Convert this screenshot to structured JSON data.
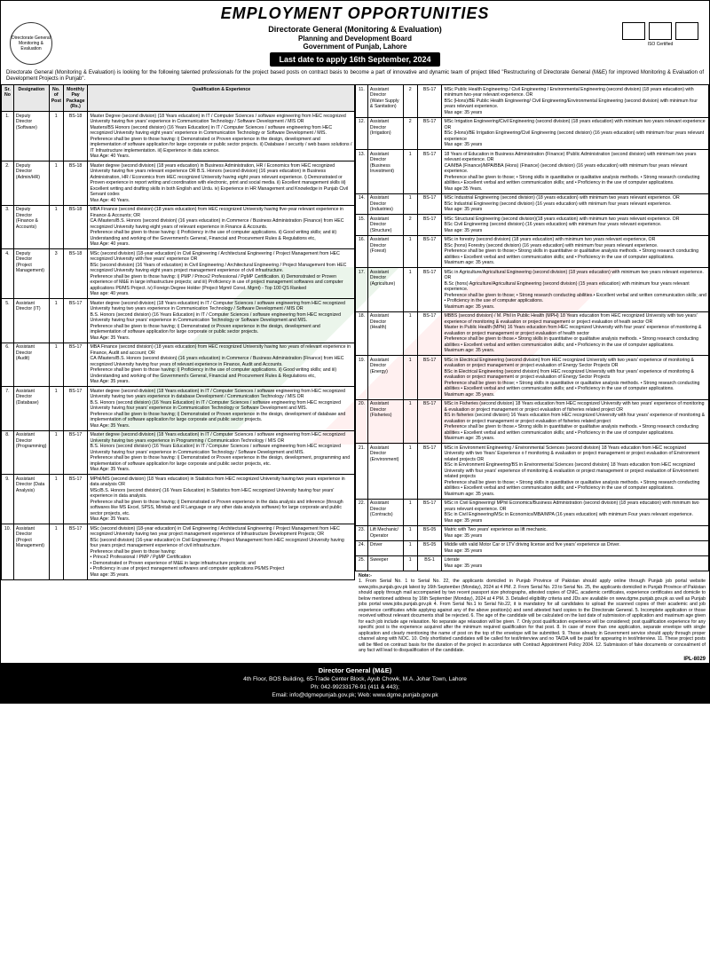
{
  "header": {
    "title": "EMPLOYMENT OPPORTUNITIES",
    "org1": "Directorate General (Monitoring & Evaluation)",
    "org2": "Planning and Development Board",
    "org3": "Government of Punjab, Lahore",
    "deadline": "Last date to apply 16th September, 2024",
    "iso": "ISO Certified",
    "logo_text": "Directorate General Monitoring & Evaluation"
  },
  "intro": "Directorate General (Monitoring & Evaluation) is looking for the following talented professionals for the project based posts on contract basis to become a part of innovative and dynamic team of project titled \"Restructuring of Directorate General (M&E) for improved Monitoring & Evaluation of Development Projects in Punjab\".",
  "th": {
    "sr": "Sr. No",
    "desig": "Designation",
    "posts": "No. of Post",
    "pay": "Monthly Pay Package (Rs.)",
    "qual": "Qualification & Experience"
  },
  "left": [
    {
      "no": "1.",
      "d": "Deputy Director (Software)",
      "p": "1",
      "s": "BS-18",
      "q": "Master Degree (second division) (18 Years education) in IT / Computer Sciences / software engineering from HEC recognized University having five years' experience in Communication Technology / Software Development / MIS OR\nMasters/BS Honors (second division) (16 Years Education) in IT / Computer Sciences / software engineering from HEC recognized University having eight years' experience in Communication Technology or Software Development / MIS.\nPreference shall be given to those having: i) Demonstrated or Proven experience in the design, development and implementation of software application for large corporate or public sector projects. ii) Database / security / web bases solutions / IT Infrastructure implementation. iii) Experience in data science.\nMax Age: 40 Years."
    },
    {
      "no": "2.",
      "d": "Deputy Director (Admin/HR)",
      "p": "1",
      "s": "BS-18",
      "q": "Master degree (second division) (18 years education) in Business Administration, HR / Economics from HEC recognized University having five years relevant experience OR B.S. Honors (second division) (16 years education) in Business Administration, HR / Economics from HEC recognized University having eight years relevant experience. i) Demonstrated or Proven experience in report writing and coordination with electronic, print and social media. ii) Excellent management skills iii) Excellent writing and drafting skills in both English and Urdu. iv) Experience in HR Management and Knowledge in Punjab Civil Servant codes\nMax Age: 40 Years."
    },
    {
      "no": "3.",
      "d": "Deputy Director (Finance & Accounts)",
      "p": "1",
      "s": "BS-18",
      "q": "MBA Finance (second division) (18 years education) from HEC recognized University having five-year relevant experience in Finance & Accounts; OR\nCA /Masters/B.S. Honors (second division) (16 years education) in Commerce / Business Administration (Finance) from HEC recognized University having eight years of relevant experience in Finance & Accounts.\nPreference shall be given to those having: i) Proficiency in the use of computer applications. ii) Good writing skills; and iii) Understanding and working of the Government's General, Financial and Procurement Rules & Regulations etc,\nMax Age: 40 years."
    },
    {
      "no": "4.",
      "d": "Deputy Director (Project Management)",
      "p": "3",
      "s": "BS-18",
      "q": "MSc (second division) (18-year education) in Civil Engineering / Architectural Engineering / Project Management from HEC recognized University with five years' experience OR\nBSc (second division) (16 Years of education) in Civil Engineering / Architectural Engineering / Project Management from HEC recognized University having eight years project management experience of civil infrastructure.\nPreference shall be given to those having: i) PMP / Prince2 Professional / PgMP Certification. ii) Demonstrated or Proven experience of M&E in large infrastructure projects; and iii) Proficiency in use of project management softwares and computer applications P6/MS Project. iv) Foreign Degree Holder (Project Mgmt/ Const. Mgmt) - Top 100 QS Ranked\nMax age: 40 years."
    },
    {
      "no": "5.",
      "d": "Assistant Director (IT)",
      "p": "1",
      "s": "BS-17",
      "q": "Master degree (second division) (18 Years education) in IT / Computer Sciences / software engineering from HEC recognized University having two years experience in Communication Technology / Software Development / MIS OR\nB.S. Honors (second division) (16 Years Education) in IT / Computer Sciences / software engineering from HEC recognized University having four years' experience in Communication Technology or Software Development and MIS.\nPreference shall be given to those having; i) Demonstrated or Proven experience in the design, development and implementation of software application for large corporate or public sector projects.\nMax Age: 35 Years."
    },
    {
      "no": "6.",
      "d": "Assistant Director (Audit)",
      "p": "1",
      "s": "BS-17",
      "q": "MBA Finance (second division) (18 years education) from HEC recognized University having two years of relevant experience in Finance, Audit and account; OR\nCA /Masters/B.S. Honors (second division) (16 years education) in Commerce / Business Administration (Finance) from HEC recognized University having four years of relevant experience in Finance, Audit and Accounts.\nPreference shall be given to those having: i) Proficiency in the use of computer applications. ii) Good writing skills; and iii) Understanding and working of the Government's General, Financial and Procurement Rules & Regulations etc,\nMax Age: 35 years."
    },
    {
      "no": "7.",
      "d": "Assistant Director (Database)",
      "p": "1",
      "s": "BS-17",
      "q": "Master degree (second division) (18 Years education) in IT / Computer Sciences / software engineering from HEC recognized University having two years experience in database Development / Communication Technology / MIS OR\nB.S. Honors (second division) (16 Years Education) in IT / Computer Sciences / software engineering from HEC recognized University having four years' experience in Communication Technology or Software Development and MIS.\nPreference shall be given to those having; i) Demonstrated or Proven experience in the design, development of database and implementation of software application for large corporate and public sector projects.\nMax Age: 35 Years."
    },
    {
      "no": "8.",
      "d": "Assistant Director (Programming)",
      "p": "1",
      "s": "BS-17",
      "q": "Master degree (second division) (18 Years education) in IT / Computer Sciences / software engineering from HEC recognized University having two years experience in Programming / Communication Technology / MIS OR\nB.S. Honors (second division) (16 Years Education) in IT / Computer Sciences / software engineering from HEC recognized University having four years' experience in Communication Technology / Software Development and MIS.\nPreference shall be given to those having: i) Demonstrated or Proven experience in the design, development, programming and implementation of software application for large corporate and public sector projects, etc.\nMax Age: 35 Years."
    },
    {
      "no": "9.",
      "d": "Assistant Director (Data Analysis)",
      "p": "1",
      "s": "BS-17",
      "q": "MPhil/MS (second division) (18 Years education) in Statistics from HEC recognized University having two years experience in data analysis OR\nMSc/B.S. Honors (second division) (16 Years Education) in Statistics from HEC recognized University having four years' experience in data analysis.\nPreference shall be given to those having; i) Demonstrated or Proven experience in the data analysis and inference (through softwares like MS Excel, SPSS, Minitab and R Language or any other data analysis software) for large corporate and public sector projects, etc.\nMax Age: 35 Years."
    },
    {
      "no": "10.",
      "d": "Assistant Director (Project Management)",
      "p": "1",
      "s": "BS-17",
      "q": "MSc (second division) (18-year education) in Civil Engineering / Architectural Engineering / Project Management from HEC recognized University having two year project management experience of Infrastructure Development Projects; OR\nBSc (second division) (16-year education) in Civil Engineering / Project Management from HEC recognized University having four years project management experience of civil infrastructure.\nPreference shall be given to those having:\n• Prince2 Professional / PMP / PgMP Certification\n• Demonstrated or Proven experience of M&E in large infrastructure projects; and\n• Proficiency in use of project management softwares and computer applications P6/MS Project\nMax age: 35 years."
    }
  ],
  "right": [
    {
      "no": "11.",
      "d": "Assistant Director (Water Supply & Sanitation)",
      "p": "2",
      "s": "BS-17",
      "q": "MSc Public Health Engineering / Civil Engineering / Environmental Engineering (second division) (18 years education) with minimum two-year relevant experience. OR\nBSc (Hons)/BE Public Health Engineering/ Civil Engineering/Environmental Engineering (second division) with minimum four years relevant experience.\nMax age: 35 years"
    },
    {
      "no": "12.",
      "d": "Assistant Director (Irrigation)",
      "p": "2",
      "s": "BS-17",
      "q": "MSc Irrigation Engineering/Civil Engineering (second division) (18 years education) with minimum two years relevant experience OR\nBSc (Hons)/BE Irrigation Engineering/Civil Engineering (second division) (16 years education) with minimum four years relevant experience\nMax age: 35 years"
    },
    {
      "no": "13.",
      "d": "Assistant Director (Business Investment)",
      "p": "1",
      "s": "BS-17",
      "q": "18 Years of Education in Business Administration (Finance) /Public Administration (second division) with minimum two years relevant experience. OR\nCA/MBA (Finance)/MPA/BBA (Hons) (Finance) (second division) (16 years education) with minimum four years relevant experience.\nPreference shall be given to those; • Strong skills in quantitative or qualitative analysis methods. • Strong research conducting abilities.• Excellent verbal and written communication skills; and • Proficiency in the use of computer applications.\nMax age:35 Years."
    },
    {
      "no": "14.",
      "d": "Assistant Director (Industries)",
      "p": "1",
      "s": "BS-17",
      "q": "MSc Industrial Engineering (second division) (18 years education) with minimum two years relevant experience. OR\nBSc Industrial Engineering (second division) (16 years education) with minimum four years relevant experience.\nMax age: 35 years"
    },
    {
      "no": "15.",
      "d": "Assistant Director (Structure)",
      "p": "2",
      "s": "BS-17",
      "q": "MSc Structural Engineering (second division)(18 years education) with minimum two years relevant experience. OR\nBSc Civil Engineering (second division) (16 years education) with minimum four years relevant experience.\nMax age: 35 years"
    },
    {
      "no": "16.",
      "d": "Assistant Director (Forest)",
      "p": "1",
      "s": "BS-17",
      "q": "MSc in forestry (second division) (18 years education) with minimum two years relevant experience, OR\nBSc (hons) Forestry (second division) (16 years education) with minimum four years relevant experience.\nPreference shall be given to those;• Strong skills in quantitative or qualitative analysis methods. • Strong research conducting abilities • Excellent verbal and written communication skills; and • Proficiency in the use of computer applications.\nMaximum age: 35 years."
    },
    {
      "no": "17.",
      "d": "Assistant Director (Agriculture)",
      "p": "1",
      "s": "BS-17",
      "q": "MSc in Agriculture/Agricultural Engineering (second division) (18 years education) with minimum two years relevant experience. OR\nB.Sc (hons) Agriculture/Agricultural Engineering (second division) (15 years education) with minimum four years relevant experience.\nPreference shall be given to those; • Strong research conducting abilities.• Excellent verbal and written communication skills; and • Proficiency in the use of computer applications.\nMaximum age: 35 years."
    },
    {
      "no": "18.",
      "d": "Assistant Director (Health)",
      "p": "1",
      "s": "BS-17",
      "q": "MBBS (second division) / M. Phil in Public Health (MPH) 18 Years education from HEC recognized University with two years' experience of monitoring & evaluation or project management or project evaluation of heath sector OR\nMaster in Public Health (MPH) 16 Years education from HEC recognized University with four years' experience of monitoring & evaluation or project management or project evaluation of health sector\nPreference shall be given to those.• Strong skills in quantitative or qualitative analysis methods. • Strong research conducting abilities • Excellent verbal and written communication skills; and • Proficiency in the use of computer applications.\nMaximum age: 35 years."
    },
    {
      "no": "19.",
      "d": "Assistant Director (Energy)",
      "p": "1",
      "s": "BS-17",
      "q": "MSc in Electrical Engineering (second division) from HEC recognized University with two years' experience of monitoring & evaluation or project management or project evaluation of Energy Sector Projects OR\nBSc in Electrical Engineering (second division) from HEC recognized University with four years' experience of monitoring & evaluation or project management or project evaluation of Energy Sector Projects\nPreference shall be given to those; • Strong skills in quantitative or qualitative analysis methods. • Strong research conducting abilities • Excellent verbal and written communication skills; and • Proficiency in the use of computer applications.\nMaximum age: 35 years."
    },
    {
      "no": "20.",
      "d": "Assistant Director (Fisheries)",
      "p": "1",
      "s": "BS-17",
      "q": "MSc in Fisheries (second division) 18 Years education from HEC recognized University with two years' experience of monitoring & evaluation or project management or project evaluation of fisheries related project OR\nBS in fisheries (second division) 16 Years education from HEC recognized University with four years' experience of monitoring & evaluation or project management or project evaluation of fisheries related project\nPreference shall be given to those.• Strong skills in quantitative or qualitative analysis methods. • Strong research conducting abilities • Excellent verbal and written communication skills; and • Proficiency in the use of computer applications.\nMaximum age: 35 years."
    },
    {
      "no": "21.",
      "d": "Assistant Director (Environment)",
      "p": "1",
      "s": "BS-17",
      "q": "MSc in Environment Engineering / Environmental Sciences (second division) 18 Years education from HEC recognized University with two Years' Experience o f monitoring & evaluation or project management or project evaluation of Environment related projects OR\nBSc in Environment Engineering/BS in Environmental Sciences (second division) 18 Years education from HEC recognized University with four years' experience of monitoring & evaluation or project management or project evaluation of Environment related projects\nPreference shall be given to those; • Strong skills in quantitative or qualitative analysis methods. • Strong research conducting abilities • Excellent verbal and written communication skills; and • Proficiency in the use of computer applications.\nMaximum age: 35 years."
    },
    {
      "no": "22.",
      "d": "Assistant Director (Contracts)",
      "p": "1",
      "s": "BS-17",
      "q": "MSc in Civil Engineering/ MPhil Economics/Business Administration (second division) (18 years education) with minimum two years relevant experience. OR\nBSc in Civil Engineering/MSc in Economics/MBA/MPA (16 years education) with minimum Four years relevant experience.\nMax age: 35 years"
    },
    {
      "no": "23.",
      "d": "Lift Mechanic/ Operator",
      "p": "1",
      "s": "BS-05",
      "q": "Matric with Two years' experience as lift mechanic.\nMax age: 35 years"
    },
    {
      "no": "24.",
      "d": "Driver",
      "p": "1",
      "s": "BS-05",
      "q": "Middle with valid Motor Car or LTV driving license and five years' experience as Driver.\nMax age: 35 years"
    },
    {
      "no": "25.",
      "d": "Sweeper",
      "p": "1",
      "s": "BS-1",
      "q": "Literate\nMax age: 35 years"
    }
  ],
  "note_head": "Note:-",
  "note": "1. From Serial No. 1 to Serial No. 22, the applicants domiciled in Punjab Province of Pakistan should apply online through Punjab job portal website www.jobs.punjab.gov.pk latest by 16th September (Monday), 2024 at 4 PM. 2. From Serial No. 23 to Serial No. 25, the applicants domiciled in Punjab Province of Pakistan should apply through mail accompanied by two recent passport size photographs, attested copies of CNIC, academic certificates, experience certificates and domicile to below mentioned address by 16th September (Monday), 2024 at 4 PM. 3. Detailed eligibility criteria and JDs are available on www.dgme.punjab.gov.pk as well as Punjab jobs portal www.jobs.punjab.gov.pk 4. From Serial No.1 to Serial No.22, it is mandatory for all candidates to upload the scanned copies of their academic and job experience certificates while applying against any of the above position(s) and send attested hard copies to the Directorate General. 5. Incomplete application or those received without relevant documents shall be rejected. 6. The age of the candidate will be calculated on the last date of submission of application and maximum age given for each job include age relaxation. No separate age relaxation will be given. 7. Only post qualification experience will be considered; post qualification experience for any specific post is the experience acquired after the minimum required qualification for that post. 8. In case of more than one application, separate envelope with single application and clearly mentioning the name of post on the top of the envelope will be submitted. 9. Those already in Government service should apply through proper channel along with NOC. 10. Only shortlisted candidates will be called for test/interview and no TA/DA will be paid for appearing in test/interview. 11. These project posts will be filled on contract basis for the duration of the project in accordance with Contract Appointment Policy 2004. 12. Submission of fake documents or concealment of any fact will lead to disqualification of the candidate.",
  "footer": {
    "t1": "Director General (M&E)",
    "t2": "4th Floor, BOS Building, 65-Trade Center Block, Ayub Chowk, M.A. Johar Town, Lahore",
    "t3": "Ph: 042-99233176-91 (411 & 443);",
    "t4": "Email: info@dgmepunjab.gov.pk; Web: www.dgme.punjab.gov.pk"
  },
  "ipl": "IPL-8029"
}
